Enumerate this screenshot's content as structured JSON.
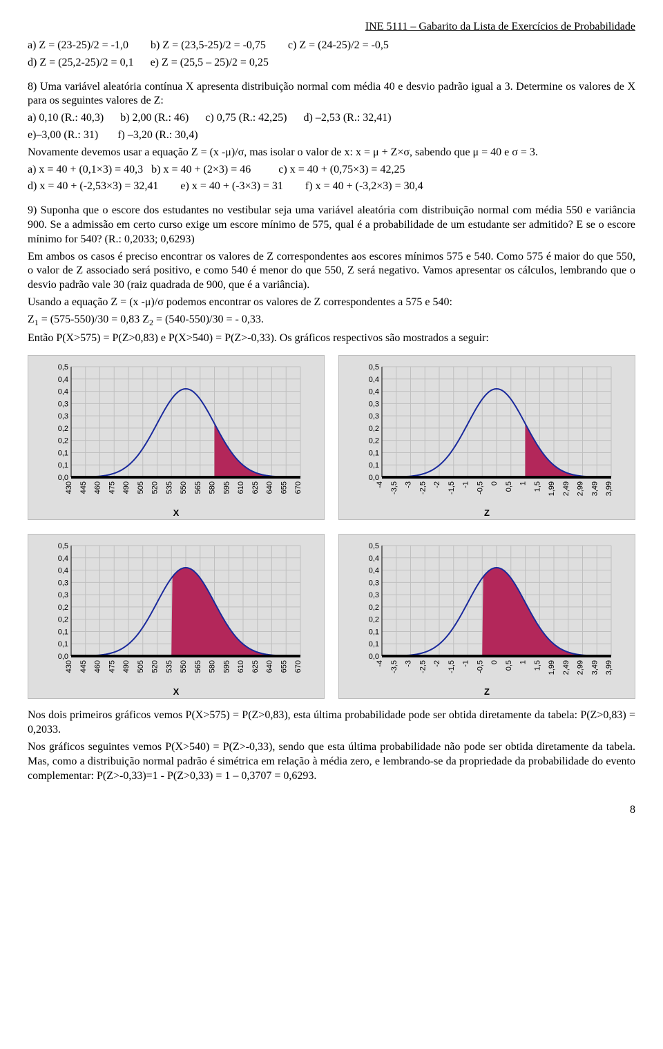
{
  "header": "INE 5111 – Gabarito da Lista de Exercícios de Probabilidade",
  "q7": {
    "line1": "a) Z = (23-25)/2 = -1,0        b) Z = (23,5-25)/2 = -0,75        c) Z = (24-25)/2 = -0,5",
    "line2": "d) Z = (25,2-25)/2 = 0,1      e) Z = (25,5 – 25)/2 = 0,25"
  },
  "q8": {
    "intro": "8) Uma variável aleatória contínua X apresenta distribuição normal com média 40 e desvio padrão igual a 3. Determine os valores de X para os seguintes valores de Z:",
    "row1": "a) 0,10 (R.: 40,3)      b) 2,00 (R.: 46)      c) 0,75 (R.: 42,25)      d) –2,53 (R.: 32,41)",
    "row2": "e)–3,00 (R.: 31)       f) –3,20 (R.: 30,4)",
    "expl": "Novamente devemos usar a equação Z = (x -μ)/σ, mas isolar o valor de x:  x = μ + Z×σ, sabendo que μ = 40 e σ = 3.",
    "ans1": "a) x = 40 + (0,1×3) = 40,3   b) x = 40 + (2×3) = 46          c) x = 40 + (0,75×3) = 42,25",
    "ans2": "d) x = 40 + (-2,53×3) = 32,41        e) x = 40 + (-3×3) = 31        f) x = 40 + (-3,2×3) = 30,4"
  },
  "q9": {
    "text": "9) Suponha que o escore dos estudantes no vestibular seja uma variável aleatória com distribuição normal com média 550 e variância 900. Se a admissão em certo curso exige um escore mínimo de 575, qual é a probabilidade de um estudante ser admitido? E se o escore mínimo for 540? (R.: 0,2033; 0,6293)",
    "p2": "Em ambos os casos é preciso encontrar os valores de Z correspondentes aos escores mínimos 575 e 540. Como 575 é maior do que 550, o valor de Z associado será positivo, e como 540 é menor do que 550, Z será negativo. Vamos apresentar os cálculos, lembrando que o desvio padrão vale 30 (raiz quadrada de 900, que é a variância).",
    "p3": "Usando a equação Z = (x -μ)/σ  podemos encontrar os valores de Z correspondentes a 575 e 540:",
    "p4a": "Z",
    "p4b": " = (575-550)/30 = 0,83        Z",
    "p4c": " = (540-550)/30 = - 0,33.",
    "p5": "Então P(X>575) = P(Z>0,83) e P(X>540) = P(Z>-0,33). Os gráficos respectivos são mostrados a seguir:"
  },
  "charts": {
    "yTicks": [
      "0,5",
      "0,4",
      "0,4",
      "0,3",
      "0,3",
      "0,2",
      "0,2",
      "0,1",
      "0,1",
      "0,0"
    ],
    "xTicks_X": [
      "430",
      "445",
      "460",
      "475",
      "490",
      "505",
      "520",
      "535",
      "550",
      "565",
      "580",
      "595",
      "610",
      "625",
      "640",
      "655",
      "670"
    ],
    "xTicks_Z": [
      "-4",
      "-3,5",
      "-3",
      "-2,5",
      "-2",
      "-1,5",
      "-1",
      "-0,5",
      "0",
      "0,5",
      "1",
      "1,5",
      "1,99",
      "2,49",
      "2,99",
      "3,49",
      "3,99"
    ],
    "curveColor": "#1a2a9c",
    "fillColor": "#b3275a",
    "gridColor": "#bfbfbf",
    "axisColor": "#000000",
    "bgColor": "#dedede",
    "chart1": {
      "axisLabel": "X",
      "shadeFromIndex": 10
    },
    "chart2": {
      "axisLabel": "Z",
      "shadeFromIndex": 10
    },
    "chart3": {
      "axisLabel": "X",
      "shadeFromIndex": 7
    },
    "chart4": {
      "axisLabel": "Z",
      "shadeFromIndex": 7
    }
  },
  "after": {
    "p1": "Nos dois primeiros gráficos vemos P(X>575) = P(Z>0,83), esta última probabilidade pode ser obtida diretamente da tabela: P(Z>0,83) = 0,2033.",
    "p2": "Nos gráficos seguintes vemos P(X>540) = P(Z>-0,33), sendo que esta última probabilidade não pode ser obtida diretamente da tabela. Mas, como a distribuição normal padrão é simétrica em relação à média zero, e lembrando-se da propriedade da probabilidade do evento complementar: P(Z>-0,33)=1 - P(Z>0,33) = 1 – 0,3707 = 0,6293."
  },
  "pageNumber": "8"
}
